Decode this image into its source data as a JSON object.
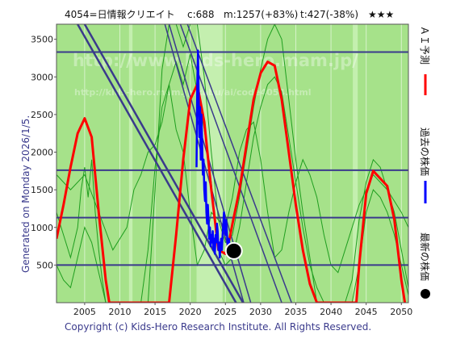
{
  "header": {
    "code_name": "4054=日情報クリエイト",
    "current": "c:688",
    "max": "m:1257(+83%)",
    "target": "t:427(-38%)",
    "rating": "★★★"
  },
  "side_text": "Generated on Monday 2026/1/5.",
  "footer": "Copyright (c) Kids-Hero Research Institute. All Rights Reserved.",
  "watermark": {
    "line1": "http://www.kids-hero.mam.jp/",
    "line2": "http://kids-hero.mam.jp/kabu/ai/code4054.html"
  },
  "legend": {
    "ai": "ＡＩ予測",
    "past": "過去の株価",
    "latest": "最新の株価"
  },
  "colors": {
    "background": "#a6e28a",
    "light_band": "#c4efaf",
    "ai_line": "#ff0000",
    "past_line": "#0000ff",
    "green_line": "#1f9e1f",
    "navy": "#3a3a8c",
    "marker": "#000000"
  },
  "chart_data": {
    "type": "line",
    "xlim": [
      2001,
      2051
    ],
    "ylim": [
      0,
      3700
    ],
    "x_ticks": [
      2005,
      2010,
      2015,
      2020,
      2025,
      2030,
      2035,
      2040,
      2045,
      2050
    ],
    "y_ticks": [
      500,
      1000,
      1500,
      2000,
      2500,
      3000,
      3500
    ],
    "horizontal_levels": [
      3330,
      1760,
      1130,
      500
    ],
    "light_bands": [
      [
        2011.3,
        2011.8
      ],
      [
        2020.9,
        2024.6
      ],
      [
        2043.1,
        2043.8
      ]
    ],
    "latest_point": {
      "x": 2026.2,
      "y": 688
    },
    "ai_forecast": {
      "x": [
        2001.0,
        2002.0,
        2003.0,
        2004.0,
        2005.0,
        2006.0,
        2007.0,
        2008.0,
        2008.5,
        2017.0,
        2018.0,
        2019.0,
        2020.0,
        2021.0,
        2022.0,
        2023.0,
        2024.0,
        2025.0,
        2025.6,
        2026.0,
        2027.0,
        2028.0,
        2029.0,
        2030.0,
        2031.0,
        2032.0,
        2033.0,
        2034.0,
        2035.0,
        2036.0,
        2037.0,
        2038.0,
        2038.5,
        2043.6,
        2044.0,
        2045.0,
        2046.0,
        2047.0,
        2048.0,
        2049.0,
        2050.0,
        2050.5
      ],
      "y": [
        850,
        1300,
        1800,
        2250,
        2450,
        2200,
        1200,
        300,
        0,
        0,
        900,
        1900,
        2700,
        2900,
        2400,
        1500,
        700,
        650,
        850,
        1050,
        1500,
        2100,
        2700,
        3050,
        3200,
        3150,
        2700,
        2000,
        1300,
        700,
        250,
        0,
        0,
        0,
        500,
        1450,
        1750,
        1650,
        1550,
        1100,
        300,
        0
      ]
    },
    "past_price": {
      "x": [
        2020.9,
        2021.0,
        2021.1,
        2021.2,
        2021.3,
        2021.4,
        2021.5,
        2021.6,
        2021.7,
        2021.8,
        2021.9,
        2022.0,
        2022.1,
        2022.2,
        2022.3,
        2022.4,
        2022.5,
        2022.6,
        2022.7,
        2022.8,
        2022.9,
        2023.0,
        2023.1,
        2023.2,
        2023.3,
        2023.4,
        2023.5,
        2023.6,
        2023.7,
        2023.8,
        2023.9,
        2024.0,
        2024.1,
        2024.2,
        2024.3,
        2024.4,
        2024.5,
        2024.6,
        2024.7,
        2024.8,
        2024.9,
        2025.0,
        2025.1,
        2025.2,
        2025.3,
        2025.4,
        2025.5,
        2025.6,
        2025.7,
        2025.8,
        2025.9,
        2026.0,
        2026.1,
        2026.2
      ],
      "y": [
        1800,
        2900,
        3350,
        2800,
        2200,
        2600,
        1900,
        2500,
        2100,
        1700,
        1900,
        1500,
        1350,
        1600,
        1200,
        1050,
        1300,
        1100,
        850,
        1000,
        750,
        900,
        800,
        950,
        700,
        850,
        650,
        900,
        800,
        1050,
        950,
        700,
        800,
        600,
        750,
        850,
        700,
        900,
        1050,
        1200,
        1000,
        900,
        1100,
        950,
        800,
        700,
        850,
        750,
        650,
        700,
        750,
        690,
        700,
        688
      ]
    },
    "projection_lines": [
      [
        [
          2018.6,
          3700
        ],
        [
          2033.0,
          0
        ]
      ],
      [
        [
          2019.6,
          3700
        ],
        [
          2034.4,
          0
        ]
      ],
      [
        [
          2016.4,
          3700
        ],
        [
          2027.6,
          0
        ]
      ],
      [
        [
          2017.0,
          3700
        ],
        [
          2028.6,
          0
        ]
      ],
      [
        [
          2005.0,
          3700
        ],
        [
          2027.5,
          0
        ]
      ],
      [
        [
          2004.0,
          3700
        ],
        [
          2026.5,
          0
        ]
      ]
    ],
    "green_lines": [
      {
        "x": [
          2001.0,
          2002.0,
          2003.0,
          2004.0,
          2004.5,
          2005.0,
          2005.5,
          2006.0,
          2006.5,
          2007.0,
          2007.5,
          2008.0,
          2009.0,
          2010.0,
          2012.0,
          2014.0,
          2015.0,
          2016.0,
          2017.0,
          2018.0,
          2019.0,
          2020.0,
          2021.0,
          2022.0,
          2023.0,
          2024.0,
          2025.0,
          2026.0,
          2027.0,
          2028.0,
          2029.0,
          2030.0,
          2031.0,
          2032.0,
          2033.0,
          2034.0,
          2035.0,
          2036.0,
          2037.0,
          2038.0,
          2040.0,
          2042.0,
          2043.0,
          2044.0,
          2045.0,
          2046.0,
          2047.0,
          2048.0,
          2049.0,
          2050.0,
          2051.0
        ],
        "y": [
          1200,
          900,
          600,
          1000,
          1500,
          1800,
          1400,
          1900,
          1200,
          700,
          300,
          0,
          0,
          0,
          0,
          0,
          1500,
          3100,
          3700,
          3700,
          3400,
          3700,
          3700,
          3000,
          2000,
          1100,
          800,
          900,
          1400,
          2000,
          2600,
          3100,
          3500,
          3700,
          3500,
          2700,
          1900,
          1200,
          600,
          0,
          0,
          0,
          300,
          1100,
          1600,
          1900,
          1800,
          1500,
          1200,
          700,
          200
        ]
      },
      {
        "x": [
          2001.0,
          2002.0,
          2003.0,
          2004.0,
          2005.0,
          2006.0,
          2007.0,
          2008.0,
          2010.0,
          2013.0,
          2014.0,
          2015.0,
          2016.0,
          2017.0,
          2018.0,
          2019.0,
          2020.0,
          2021.0,
          2022.0,
          2023.0,
          2024.0,
          2025.0,
          2026.0,
          2027.0,
          2028.0,
          2029.0,
          2030.0,
          2031.0,
          2032.0,
          2033.0,
          2034.0,
          2035.0,
          2036.0,
          2037.0,
          2038.0,
          2039.0,
          2042.0,
          2043.0,
          2044.0,
          2045.0,
          2046.0,
          2047.0,
          2048.0,
          2049.0,
          2050.0,
          2051.0
        ],
        "y": [
          500,
          300,
          200,
          600,
          1000,
          800,
          400,
          0,
          0,
          0,
          700,
          1800,
          2600,
          2900,
          3200,
          2900,
          3300,
          2800,
          2300,
          1600,
          700,
          500,
          600,
          1000,
          1600,
          2200,
          2600,
          2900,
          3000,
          2800,
          2200,
          1600,
          1000,
          500,
          200,
          0,
          0,
          0,
          500,
          1200,
          1500,
          1400,
          1200,
          900,
          500,
          100
        ]
      },
      {
        "x": [
          2001.0,
          2003.0,
          2005.0,
          2007.0,
          2009.0,
          2011.0,
          2012.0,
          2013.0,
          2014.0,
          2015.0,
          2016.0,
          2017.0,
          2018.0,
          2019.0,
          2020.0,
          2021.0,
          2022.0,
          2023.0,
          2024.0,
          2025.0,
          2026.0,
          2027.0,
          2028.0,
          2029.0,
          2030.0,
          2031.0,
          2032.0,
          2033.0,
          2034.0,
          2035.0,
          2036.0,
          2037.0,
          2038.0,
          2039.0,
          2040.0,
          2041.0,
          2042.0,
          2044.0,
          2046.0,
          2048.0,
          2050.0,
          2051.0
        ],
        "y": [
          1700,
          1500,
          1700,
          1200,
          700,
          1000,
          1500,
          1700,
          2000,
          2100,
          2400,
          2900,
          2300,
          2000,
          1200,
          500,
          700,
          1200,
          1100,
          1000,
          1400,
          2000,
          2300,
          2400,
          1900,
          1200,
          600,
          700,
          1200,
          1600,
          1900,
          1700,
          1400,
          900,
          500,
          400,
          700,
          1300,
          1700,
          1500,
          1200,
          1000
        ]
      }
    ]
  }
}
